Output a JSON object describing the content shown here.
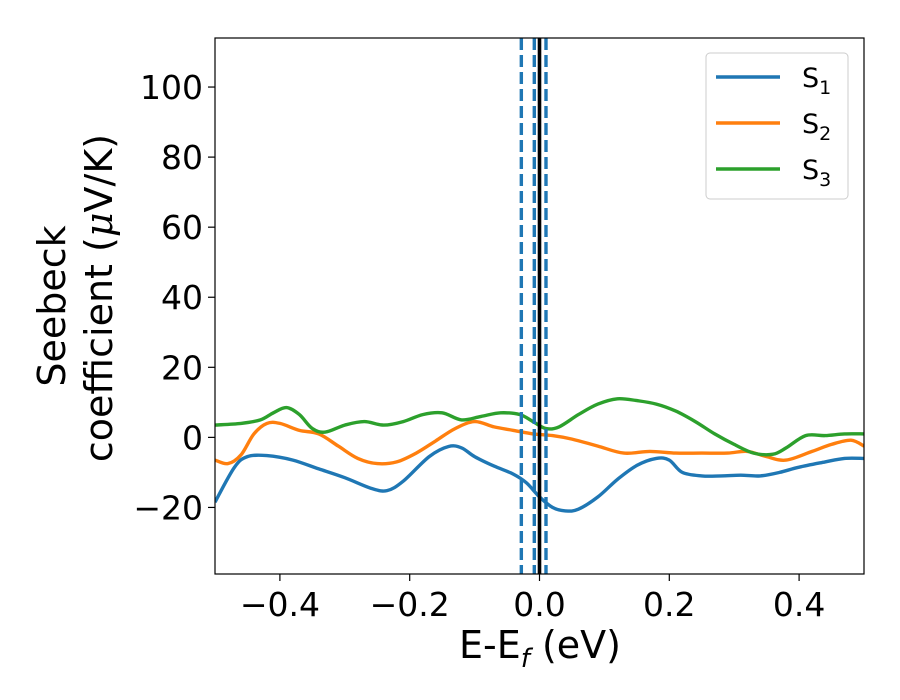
{
  "chart_data": {
    "type": "line",
    "xlabel": "E-E",
    "xlabel_sub": "f",
    "xlabel_unit": " (eV)",
    "ylabel_line1": "Seebeck",
    "ylabel_line2_prefix": "coefficient  (",
    "ylabel_mu": "μ",
    "ylabel_line2_suffix": "V/K)",
    "xlim": [
      -0.5,
      0.5
    ],
    "ylim": [
      -39,
      114
    ],
    "xticks": [
      -0.4,
      -0.2,
      0.0,
      0.2,
      0.4
    ],
    "xtick_labels": [
      "−0.4",
      "−0.2",
      "0.0",
      "0.2",
      "0.4"
    ],
    "yticks": [
      -20,
      0,
      20,
      40,
      60,
      80,
      100
    ],
    "ytick_labels": [
      "−20",
      "0",
      "20",
      "40",
      "60",
      "80",
      "100"
    ],
    "grid": false,
    "legend_position": "top-right",
    "vlines": [
      {
        "x": 0.0,
        "color": "#000000",
        "style": "solid"
      },
      {
        "x": -0.028,
        "color": "#1f77b4",
        "style": "dashed"
      },
      {
        "x": -0.008,
        "color": "#1f77b4",
        "style": "dashed"
      },
      {
        "x": 0.01,
        "color": "#1f77b4",
        "style": "dashed"
      }
    ],
    "series": [
      {
        "name": "S",
        "sub": "1",
        "color": "#1f77b4",
        "x": [
          -0.5,
          -0.47,
          -0.45,
          -0.42,
          -0.38,
          -0.34,
          -0.3,
          -0.26,
          -0.235,
          -0.21,
          -0.17,
          -0.14,
          -0.12,
          -0.1,
          -0.07,
          -0.04,
          -0.02,
          0.0,
          0.02,
          0.04,
          0.06,
          0.09,
          0.12,
          0.15,
          0.18,
          0.2,
          0.22,
          0.25,
          0.28,
          0.31,
          0.34,
          0.37,
          0.4,
          0.44,
          0.47,
          0.5
        ],
        "y": [
          -18.5,
          -8.5,
          -5.5,
          -5.2,
          -6.5,
          -9.0,
          -11.5,
          -14.5,
          -15.2,
          -12.5,
          -5.5,
          -2.6,
          -3.0,
          -5.5,
          -8.2,
          -10.5,
          -13.0,
          -17.0,
          -20.0,
          -21.0,
          -20.5,
          -17.0,
          -12.0,
          -8.0,
          -6.0,
          -6.5,
          -10.0,
          -11.0,
          -11.0,
          -10.8,
          -11.0,
          -10.0,
          -8.5,
          -7.0,
          -6.0,
          -6.0
        ]
      },
      {
        "name": "S",
        "sub": "2",
        "color": "#ff7f0e",
        "x": [
          -0.5,
          -0.48,
          -0.46,
          -0.44,
          -0.42,
          -0.4,
          -0.37,
          -0.34,
          -0.31,
          -0.28,
          -0.25,
          -0.22,
          -0.19,
          -0.16,
          -0.13,
          -0.1,
          -0.07,
          -0.04,
          -0.01,
          0.02,
          0.05,
          0.09,
          0.13,
          0.17,
          0.21,
          0.25,
          0.29,
          0.32,
          0.35,
          0.38,
          0.42,
          0.45,
          0.48,
          0.5
        ],
        "y": [
          -6.5,
          -7.5,
          -5.0,
          1.0,
          4.0,
          4.0,
          2.0,
          1.0,
          -2.5,
          -6.0,
          -7.5,
          -7.0,
          -4.5,
          -1.0,
          2.5,
          4.5,
          3.0,
          2.0,
          1.0,
          0.5,
          -0.5,
          -2.5,
          -4.5,
          -4.0,
          -4.5,
          -4.5,
          -4.5,
          -4.0,
          -5.5,
          -6.5,
          -4.0,
          -2.0,
          -0.8,
          -2.5
        ]
      },
      {
        "name": "S",
        "sub": "3",
        "color": "#2ca02c",
        "x": [
          -0.5,
          -0.46,
          -0.43,
          -0.41,
          -0.39,
          -0.37,
          -0.35,
          -0.33,
          -0.3,
          -0.27,
          -0.24,
          -0.21,
          -0.18,
          -0.15,
          -0.12,
          -0.09,
          -0.06,
          -0.03,
          -0.01,
          0.01,
          0.03,
          0.06,
          0.09,
          0.12,
          0.15,
          0.18,
          0.21,
          0.24,
          0.27,
          0.3,
          0.33,
          0.36,
          0.38,
          0.41,
          0.44,
          0.47,
          0.5
        ],
        "y": [
          3.5,
          4.0,
          5.0,
          7.0,
          8.5,
          6.5,
          2.5,
          1.5,
          3.5,
          4.5,
          3.5,
          4.5,
          6.5,
          7.0,
          5.0,
          6.0,
          7.0,
          6.5,
          4.5,
          2.5,
          3.0,
          6.5,
          9.5,
          11.0,
          10.5,
          9.5,
          7.5,
          4.5,
          1.0,
          -2.0,
          -4.5,
          -4.8,
          -3.0,
          0.5,
          0.5,
          1.0,
          1.0
        ]
      }
    ]
  }
}
